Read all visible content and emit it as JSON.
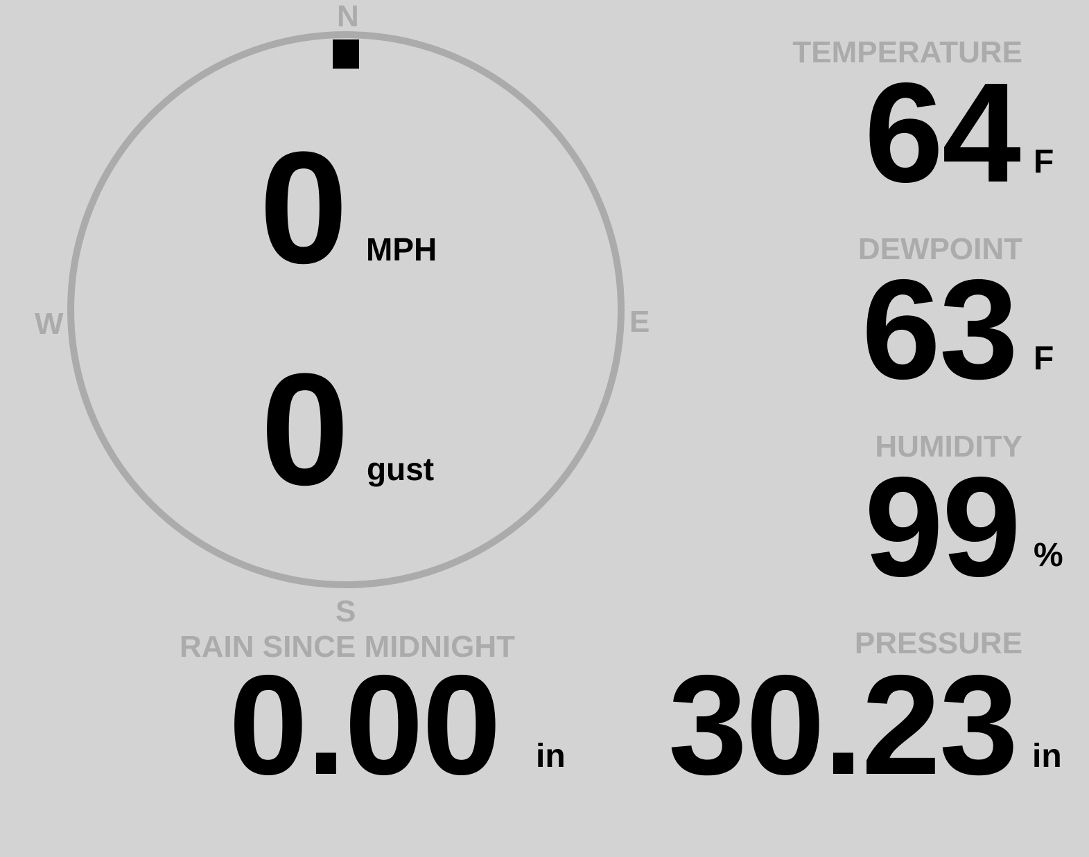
{
  "compass": {
    "directions": {
      "n": "N",
      "e": "E",
      "s": "S",
      "w": "W"
    },
    "wind_direction_deg": 0,
    "wind_speed": "0",
    "wind_speed_unit": "MPH",
    "gust": "0",
    "gust_unit": "gust"
  },
  "temperature": {
    "label": "TEMPERATURE",
    "value": "64",
    "unit": "F"
  },
  "dewpoint": {
    "label": "DEWPOINT",
    "value": "63",
    "unit": "F"
  },
  "humidity": {
    "label": "HUMIDITY",
    "value": "99",
    "unit": "%"
  },
  "rain": {
    "label": "RAIN SINCE MIDNIGHT",
    "value": "0.00",
    "unit": "in"
  },
  "pressure": {
    "label": "PRESSURE",
    "value": "30.23",
    "unit": "in"
  },
  "colors": {
    "background": "#d3d3d3",
    "label": "#ababab",
    "value": "#000000"
  }
}
